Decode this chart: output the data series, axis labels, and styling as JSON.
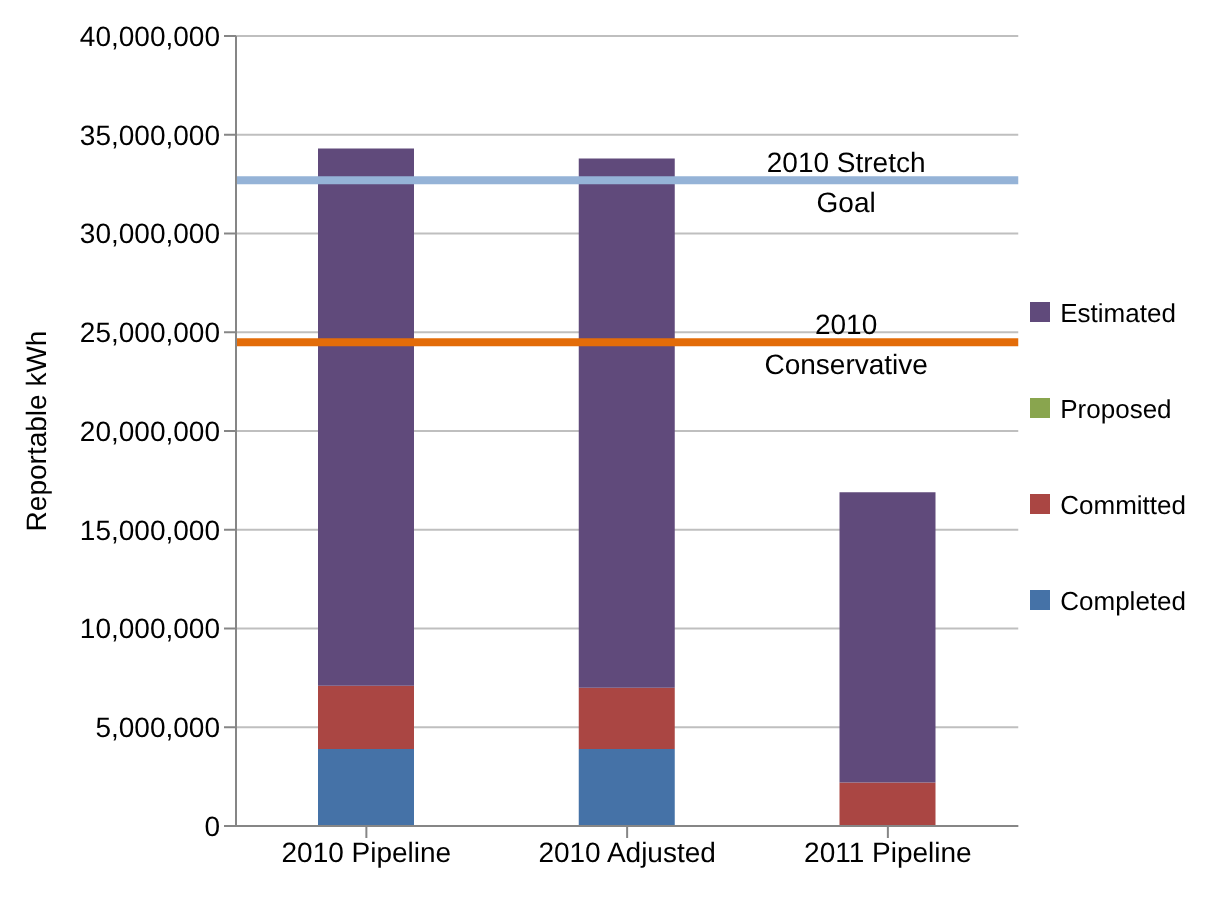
{
  "chart_data": {
    "type": "bar",
    "stacked": true,
    "ylabel": "Reportable kWh",
    "categories": [
      "2010 Pipeline",
      "2010 Adjusted",
      "2011 Pipeline"
    ],
    "series": [
      {
        "name": "Completed",
        "color": "#4572a7",
        "values": [
          3900000,
          3900000,
          0
        ]
      },
      {
        "name": "Committed",
        "color": "#aa4643",
        "values": [
          3200000,
          3100000,
          2200000
        ]
      },
      {
        "name": "Proposed",
        "color": "#89a54e",
        "values": [
          0,
          0,
          0
        ]
      },
      {
        "name": "Estimated",
        "color": "#604a7b",
        "values": [
          27200000,
          26800000,
          14700000
        ]
      }
    ],
    "ylim": [
      0,
      40000000
    ],
    "yticks": [
      0,
      {
        "value": 5000000,
        "label": "5,000,000"
      },
      {
        "value": 10000000,
        "label": "10,000,000"
      },
      {
        "value": 15000000,
        "label": "15,000,000"
      },
      {
        "value": 20000000,
        "label": "20,000,000"
      },
      {
        "value": 25000000,
        "label": "25,000,000"
      },
      {
        "value": 30000000,
        "label": "30,000,000"
      },
      {
        "value": 35000000,
        "label": "35,000,000"
      },
      {
        "value": 40000000,
        "label": "40,000,000"
      }
    ],
    "grid": "y",
    "legend": "right",
    "ref_lines": [
      {
        "axis": "y",
        "value": 32700000,
        "label": "2010 Stretch Goal",
        "color": "#95b3d7"
      },
      {
        "axis": "y",
        "value": 24500000,
        "label": "2010 Conservative",
        "color": "#e36c09"
      }
    ]
  }
}
